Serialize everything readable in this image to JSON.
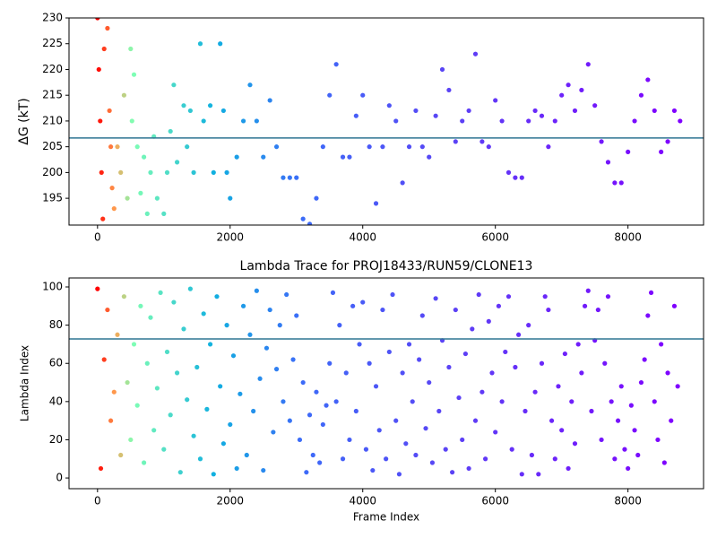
{
  "chart_data": [
    {
      "type": "scatter",
      "ylabel": "ΔG (kT)",
      "x": [
        0,
        20,
        40,
        60,
        80,
        100,
        150,
        180,
        200,
        220,
        250,
        300,
        350,
        400,
        450,
        500,
        520,
        550,
        600,
        650,
        700,
        750,
        800,
        850,
        900,
        1000,
        1050,
        1100,
        1150,
        1200,
        1300,
        1350,
        1400,
        1450,
        1550,
        1600,
        1700,
        1750,
        1850,
        1900,
        1950,
        2000,
        2100,
        2200,
        2300,
        2400,
        2500,
        2600,
        2700,
        2800,
        2900,
        3000,
        3100,
        3200,
        3300,
        3400,
        3500,
        3600,
        3700,
        3800,
        3900,
        4000,
        4100,
        4200,
        4300,
        4400,
        4500,
        4600,
        4700,
        4800,
        4900,
        5000,
        5100,
        5200,
        5300,
        5400,
        5500,
        5600,
        5700,
        5800,
        5900,
        6000,
        6100,
        6200,
        6300,
        6400,
        6500,
        6600,
        6700,
        6800,
        6900,
        7000,
        7100,
        7200,
        7300,
        7400,
        7500,
        7600,
        7700,
        7800,
        7900,
        8000,
        8100,
        8200,
        8300,
        8400,
        8500,
        8600,
        8700,
        8786
      ],
      "values": [
        230,
        220,
        210,
        200,
        191,
        224,
        228,
        212,
        205,
        197,
        193,
        205,
        200,
        215,
        195,
        224,
        210,
        219,
        205,
        196,
        203,
        192,
        200,
        207,
        195,
        192,
        200,
        208,
        217,
        202,
        213,
        205,
        212,
        200,
        225,
        210,
        213,
        200,
        225,
        212,
        200,
        195,
        203,
        210,
        217,
        210,
        203,
        214,
        205,
        199,
        199,
        199,
        191,
        190,
        195,
        205,
        215,
        221,
        203,
        203,
        211,
        215,
        205,
        194,
        205,
        213,
        210,
        198,
        205,
        212,
        205,
        203,
        211,
        220,
        216,
        206,
        210,
        212,
        223,
        206,
        205,
        214,
        210,
        200,
        199,
        199,
        210,
        212,
        211,
        205,
        210,
        215,
        217,
        212,
        216,
        221,
        213,
        206,
        202,
        198,
        198,
        204,
        210,
        215,
        218,
        212,
        204,
        206,
        212,
        210
      ],
      "xlim": [
        -430,
        9140
      ],
      "xticks": [
        0,
        2000,
        4000,
        6000,
        8000
      ],
      "ylim": [
        189.8,
        230
      ],
      "yticks": [
        195,
        200,
        205,
        210,
        215,
        220,
        225,
        230
      ],
      "hline": 206.7,
      "hline_color": "#2f7592",
      "colormap": [
        {
          "stop": 0,
          "color": "#ff0000"
        },
        {
          "stop": 0.03,
          "color": "#ffa050"
        },
        {
          "stop": 0.06,
          "color": "#80ffb4"
        },
        {
          "stop": 0.2,
          "color": "#10b0e0"
        },
        {
          "stop": 0.35,
          "color": "#3c6cf8"
        },
        {
          "stop": 0.6,
          "color": "#5a44f5"
        },
        {
          "stop": 1,
          "color": "#8000ff"
        }
      ]
    },
    {
      "type": "scatter",
      "title": "Lambda Trace for PROJ18433/RUN59/CLONE13",
      "xlabel": "Frame Index",
      "ylabel": "Lambda Index",
      "x": [
        0,
        50,
        100,
        150,
        200,
        250,
        300,
        350,
        400,
        450,
        500,
        550,
        600,
        650,
        700,
        750,
        800,
        850,
        900,
        950,
        1000,
        1050,
        1100,
        1150,
        1200,
        1250,
        1300,
        1350,
        1400,
        1450,
        1500,
        1550,
        1600,
        1650,
        1700,
        1750,
        1800,
        1850,
        1900,
        1950,
        2000,
        2050,
        2100,
        2150,
        2200,
        2250,
        2300,
        2350,
        2400,
        2450,
        2500,
        2550,
        2600,
        2650,
        2700,
        2750,
        2800,
        2850,
        2900,
        2950,
        3000,
        3050,
        3100,
        3150,
        3200,
        3250,
        3300,
        3350,
        3400,
        3450,
        3500,
        3550,
        3600,
        3650,
        3700,
        3750,
        3800,
        3850,
        3900,
        3950,
        4000,
        4050,
        4100,
        4150,
        4200,
        4250,
        4300,
        4350,
        4400,
        4450,
        4500,
        4550,
        4600,
        4650,
        4700,
        4750,
        4800,
        4850,
        4900,
        4950,
        5000,
        5050,
        5100,
        5150,
        5200,
        5250,
        5300,
        5350,
        5400,
        5450,
        5500,
        5550,
        5600,
        5650,
        5700,
        5750,
        5800,
        5850,
        5900,
        5950,
        6000,
        6050,
        6100,
        6150,
        6200,
        6250,
        6300,
        6350,
        6400,
        6450,
        6500,
        6550,
        6600,
        6650,
        6700,
        6750,
        6800,
        6850,
        6900,
        6950,
        7000,
        7050,
        7100,
        7150,
        7200,
        7250,
        7300,
        7350,
        7400,
        7450,
        7500,
        7550,
        7600,
        7650,
        7700,
        7750,
        7800,
        7850,
        7900,
        7950,
        8000,
        8050,
        8100,
        8150,
        8200,
        8250,
        8300,
        8350,
        8400,
        8450,
        8500,
        8550,
        8600,
        8650,
        8700,
        8750
      ],
      "values": [
        99,
        5,
        62,
        88,
        30,
        45,
        75,
        12,
        95,
        50,
        20,
        70,
        38,
        90,
        8,
        60,
        84,
        25,
        47,
        97,
        15,
        66,
        33,
        92,
        55,
        3,
        78,
        41,
        99,
        22,
        58,
        10,
        86,
        36,
        70,
        2,
        95,
        48,
        18,
        80,
        28,
        64,
        5,
        44,
        90,
        12,
        75,
        35,
        98,
        52,
        4,
        68,
        88,
        24,
        57,
        80,
        40,
        96,
        30,
        62,
        85,
        20,
        50,
        3,
        33,
        12,
        45,
        8,
        28,
        38,
        60,
        97,
        40,
        80,
        10,
        55,
        20,
        90,
        35,
        70,
        92,
        15,
        60,
        4,
        48,
        25,
        88,
        10,
        66,
        96,
        30,
        2,
        55,
        18,
        70,
        40,
        12,
        62,
        85,
        26,
        50,
        8,
        94,
        35,
        72,
        15,
        58,
        3,
        88,
        42,
        20,
        65,
        5,
        78,
        30,
        96,
        45,
        10,
        82,
        55,
        24,
        90,
        40,
        66,
        95,
        15,
        58,
        75,
        2,
        35,
        80,
        12,
        45,
        2,
        60,
        95,
        88,
        30,
        10,
        48,
        25,
        65,
        5,
        40,
        18,
        70,
        55,
        90,
        98,
        35,
        72,
        88,
        20,
        60,
        95,
        40,
        10,
        30,
        48,
        15,
        5,
        38,
        25,
        12,
        50,
        62,
        85,
        97,
        40,
        20,
        70,
        8,
        55,
        30,
        90,
        48
      ],
      "xlim": [
        -430,
        9140
      ],
      "xticks": [
        0,
        2000,
        4000,
        6000,
        8000
      ],
      "ylim": [
        -5.6,
        104.7
      ],
      "yticks": [
        0,
        20,
        40,
        60,
        80,
        100
      ],
      "hline": 72.8,
      "hline_color": "#2f7592",
      "colormap": [
        {
          "stop": 0,
          "color": "#ff0000"
        },
        {
          "stop": 0.03,
          "color": "#ffa050"
        },
        {
          "stop": 0.06,
          "color": "#80ffb4"
        },
        {
          "stop": 0.2,
          "color": "#10b0e0"
        },
        {
          "stop": 0.35,
          "color": "#3c6cf8"
        },
        {
          "stop": 0.6,
          "color": "#5a44f5"
        },
        {
          "stop": 1,
          "color": "#8000ff"
        }
      ]
    }
  ]
}
